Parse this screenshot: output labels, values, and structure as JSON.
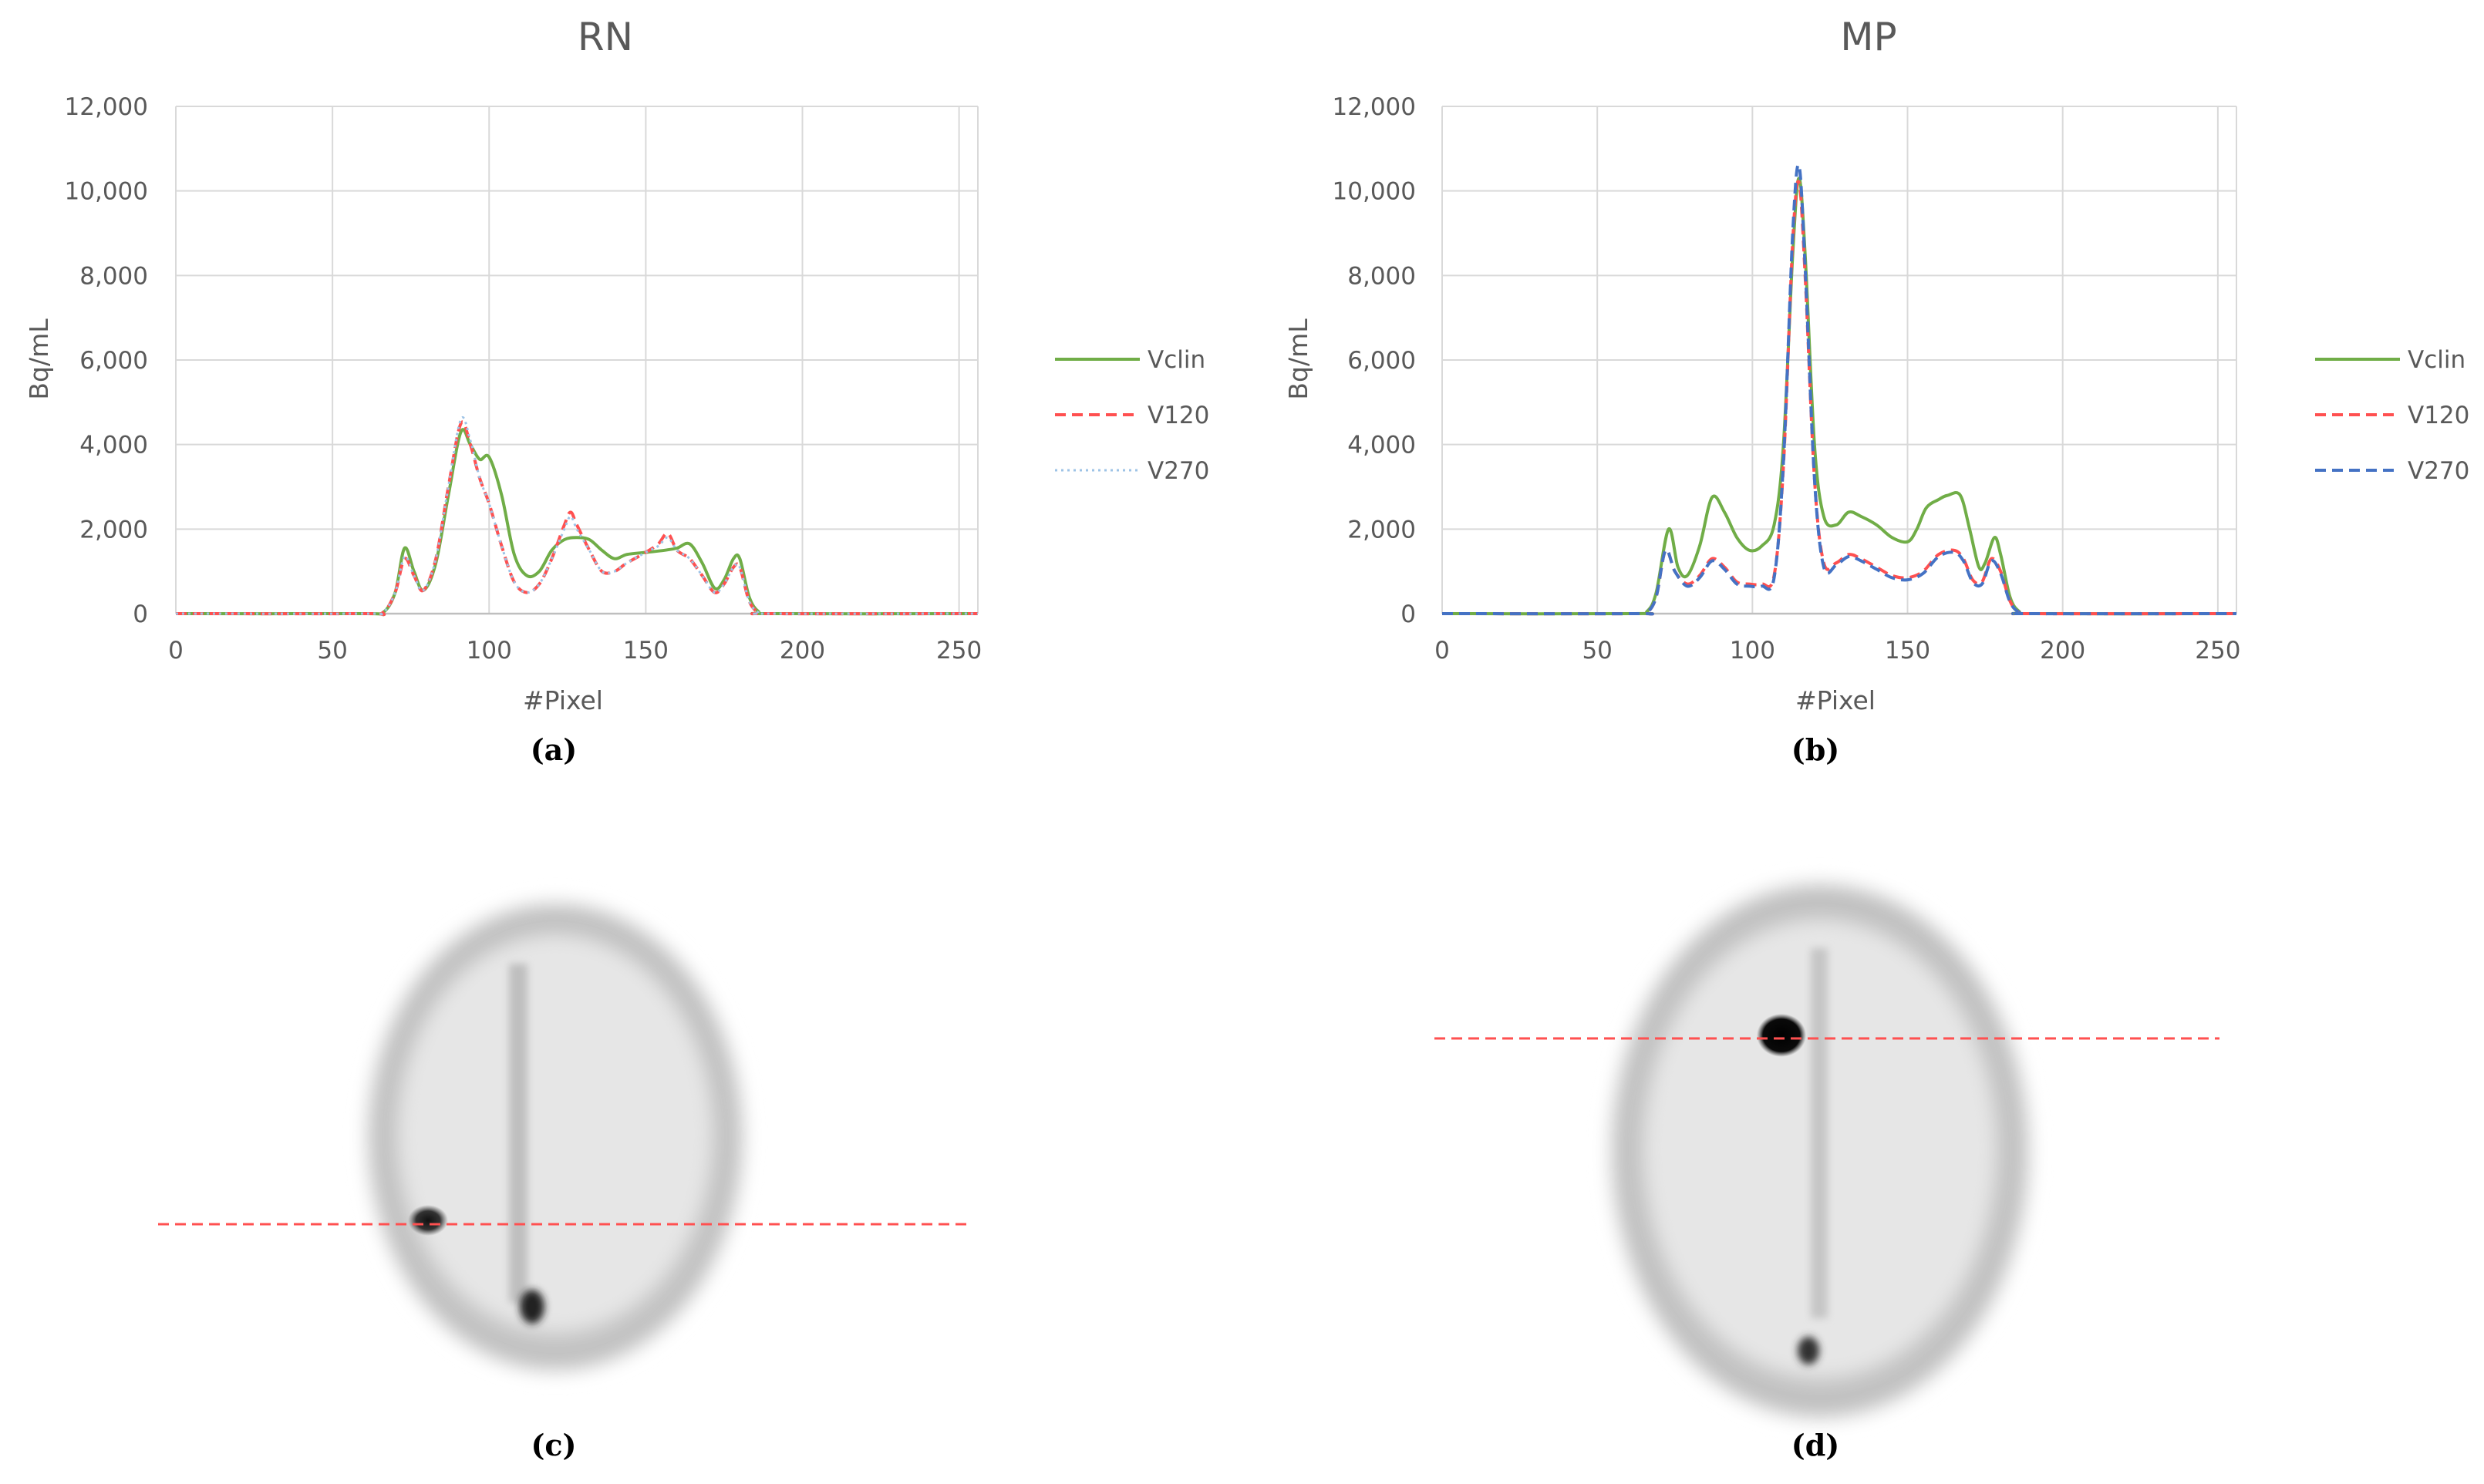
{
  "captions": {
    "a": "(a)",
    "b": "(b)",
    "c": "(c)",
    "d": "(d)"
  },
  "chart_data": [
    {
      "type": "line",
      "title": "RN",
      "xlabel": "#Pixel",
      "ylabel": "Bq/mL",
      "xlim": [
        0,
        256
      ],
      "ylim": [
        0,
        12000
      ],
      "xticks": [
        "0",
        "50",
        "100",
        "150",
        "200",
        "250"
      ],
      "yticks": [
        "0",
        "2,000",
        "4,000",
        "6,000",
        "8,000",
        "10,000",
        "12,000"
      ],
      "grid": true,
      "legend_position": "right",
      "series": [
        {
          "name": "Vclin",
          "color": "#70ad47",
          "dash": "solid",
          "points": [
            [
              0,
              0
            ],
            [
              60,
              0
            ],
            [
              66,
              20
            ],
            [
              70,
              500
            ],
            [
              73,
              1550
            ],
            [
              76,
              1000
            ],
            [
              79,
              550
            ],
            [
              83,
              1200
            ],
            [
              87,
              2800
            ],
            [
              91,
              4300
            ],
            [
              94,
              4000
            ],
            [
              97,
              3650
            ],
            [
              100,
              3700
            ],
            [
              104,
              2800
            ],
            [
              108,
              1400
            ],
            [
              112,
              900
            ],
            [
              116,
              1000
            ],
            [
              120,
              1500
            ],
            [
              124,
              1750
            ],
            [
              128,
              1800
            ],
            [
              132,
              1750
            ],
            [
              136,
              1500
            ],
            [
              140,
              1300
            ],
            [
              144,
              1400
            ],
            [
              150,
              1450
            ],
            [
              156,
              1500
            ],
            [
              160,
              1550
            ],
            [
              164,
              1650
            ],
            [
              168,
              1200
            ],
            [
              172,
              600
            ],
            [
              175,
              800
            ],
            [
              178,
              1300
            ],
            [
              180,
              1300
            ],
            [
              183,
              400
            ],
            [
              186,
              50
            ],
            [
              190,
              0
            ],
            [
              256,
              0
            ]
          ]
        },
        {
          "name": "V120",
          "color": "#ff5050",
          "dash": "dashed",
          "points": [
            [
              0,
              0
            ],
            [
              60,
              0
            ],
            [
              66,
              20
            ],
            [
              70,
              500
            ],
            [
              73,
              1300
            ],
            [
              76,
              900
            ],
            [
              79,
              550
            ],
            [
              83,
              1300
            ],
            [
              87,
              3000
            ],
            [
              91,
              4500
            ],
            [
              94,
              4000
            ],
            [
              97,
              3200
            ],
            [
              100,
              2600
            ],
            [
              104,
              1600
            ],
            [
              108,
              750
            ],
            [
              112,
              500
            ],
            [
              116,
              700
            ],
            [
              120,
              1300
            ],
            [
              124,
              2100
            ],
            [
              126,
              2400
            ],
            [
              128,
              2100
            ],
            [
              132,
              1500
            ],
            [
              136,
              1000
            ],
            [
              140,
              1000
            ],
            [
              144,
              1200
            ],
            [
              150,
              1450
            ],
            [
              154,
              1650
            ],
            [
              157,
              1900
            ],
            [
              160,
              1500
            ],
            [
              164,
              1300
            ],
            [
              168,
              900
            ],
            [
              172,
              500
            ],
            [
              175,
              700
            ],
            [
              178,
              1100
            ],
            [
              180,
              1100
            ],
            [
              183,
              300
            ],
            [
              186,
              30
            ],
            [
              190,
              0
            ],
            [
              256,
              0
            ]
          ]
        },
        {
          "name": "V270",
          "color": "#9dc3e6",
          "dash": "dotted",
          "points": [
            [
              0,
              0
            ],
            [
              60,
              0
            ],
            [
              66,
              20
            ],
            [
              70,
              500
            ],
            [
              73,
              1350
            ],
            [
              76,
              900
            ],
            [
              79,
              550
            ],
            [
              83,
              1300
            ],
            [
              87,
              3000
            ],
            [
              91,
              4600
            ],
            [
              94,
              4100
            ],
            [
              97,
              3200
            ],
            [
              100,
              2600
            ],
            [
              104,
              1600
            ],
            [
              108,
              750
            ],
            [
              112,
              500
            ],
            [
              116,
              700
            ],
            [
              120,
              1300
            ],
            [
              124,
              2000
            ],
            [
              126,
              2300
            ],
            [
              128,
              2000
            ],
            [
              132,
              1500
            ],
            [
              136,
              1000
            ],
            [
              140,
              1000
            ],
            [
              144,
              1200
            ],
            [
              150,
              1450
            ],
            [
              154,
              1600
            ],
            [
              157,
              1800
            ],
            [
              160,
              1500
            ],
            [
              164,
              1300
            ],
            [
              168,
              900
            ],
            [
              172,
              500
            ],
            [
              175,
              700
            ],
            [
              178,
              1100
            ],
            [
              180,
              1100
            ],
            [
              183,
              300
            ],
            [
              186,
              30
            ],
            [
              190,
              0
            ],
            [
              256,
              0
            ]
          ]
        }
      ]
    },
    {
      "type": "line",
      "title": "MP",
      "xlabel": "#Pixel",
      "ylabel": "Bq/mL",
      "xlim": [
        0,
        256
      ],
      "ylim": [
        0,
        12000
      ],
      "xticks": [
        "0",
        "50",
        "100",
        "150",
        "200",
        "250"
      ],
      "yticks": [
        "0",
        "2,000",
        "4,000",
        "6,000",
        "8,000",
        "10,000",
        "12,000"
      ],
      "grid": true,
      "legend_position": "right",
      "series": [
        {
          "name": "Vclin",
          "color": "#70ad47",
          "dash": "solid",
          "points": [
            [
              0,
              0
            ],
            [
              62,
              0
            ],
            [
              66,
              50
            ],
            [
              69,
              500
            ],
            [
              73,
              2000
            ],
            [
              76,
              1100
            ],
            [
              79,
              900
            ],
            [
              83,
              1600
            ],
            [
              87,
              2750
            ],
            [
              91,
              2400
            ],
            [
              95,
              1800
            ],
            [
              99,
              1500
            ],
            [
              103,
              1600
            ],
            [
              107,
              2100
            ],
            [
              110,
              4000
            ],
            [
              113,
              8500
            ],
            [
              115,
              10300
            ],
            [
              117,
              8500
            ],
            [
              120,
              4000
            ],
            [
              123,
              2300
            ],
            [
              127,
              2100
            ],
            [
              131,
              2400
            ],
            [
              135,
              2300
            ],
            [
              140,
              2100
            ],
            [
              145,
              1800
            ],
            [
              150,
              1700
            ],
            [
              153,
              2000
            ],
            [
              156,
              2500
            ],
            [
              160,
              2700
            ],
            [
              163,
              2800
            ],
            [
              167,
              2800
            ],
            [
              170,
              2000
            ],
            [
              173,
              1100
            ],
            [
              175,
              1200
            ],
            [
              178,
              1800
            ],
            [
              180,
              1400
            ],
            [
              183,
              400
            ],
            [
              186,
              50
            ],
            [
              190,
              0
            ],
            [
              256,
              0
            ]
          ]
        },
        {
          "name": "V120",
          "color": "#ff5050",
          "dash": "dashed",
          "points": [
            [
              0,
              0
            ],
            [
              62,
              0
            ],
            [
              66,
              30
            ],
            [
              69,
              400
            ],
            [
              72,
              1500
            ],
            [
              75,
              1000
            ],
            [
              79,
              700
            ],
            [
              83,
              900
            ],
            [
              87,
              1300
            ],
            [
              91,
              1100
            ],
            [
              95,
              750
            ],
            [
              99,
              700
            ],
            [
              103,
              700
            ],
            [
              107,
              900
            ],
            [
              110,
              3500
            ],
            [
              113,
              8800
            ],
            [
              115,
              10200
            ],
            [
              117,
              8000
            ],
            [
              120,
              3200
            ],
            [
              123,
              1200
            ],
            [
              127,
              1200
            ],
            [
              131,
              1400
            ],
            [
              135,
              1300
            ],
            [
              140,
              1100
            ],
            [
              145,
              900
            ],
            [
              150,
              850
            ],
            [
              155,
              1000
            ],
            [
              160,
              1400
            ],
            [
              165,
              1500
            ],
            [
              168,
              1300
            ],
            [
              171,
              800
            ],
            [
              174,
              750
            ],
            [
              177,
              1300
            ],
            [
              180,
              1000
            ],
            [
              183,
              300
            ],
            [
              186,
              30
            ],
            [
              190,
              0
            ],
            [
              256,
              0
            ]
          ]
        },
        {
          "name": "V270",
          "color": "#4472c4",
          "dash": "dashed",
          "points": [
            [
              0,
              0
            ],
            [
              62,
              0
            ],
            [
              66,
              30
            ],
            [
              69,
              400
            ],
            [
              72,
              1500
            ],
            [
              75,
              1000
            ],
            [
              79,
              650
            ],
            [
              83,
              850
            ],
            [
              87,
              1250
            ],
            [
              91,
              1050
            ],
            [
              95,
              700
            ],
            [
              99,
              650
            ],
            [
              103,
              650
            ],
            [
              107,
              850
            ],
            [
              110,
              3600
            ],
            [
              113,
              9000
            ],
            [
              115,
              10600
            ],
            [
              117,
              8200
            ],
            [
              120,
              3200
            ],
            [
              123,
              1100
            ],
            [
              127,
              1150
            ],
            [
              131,
              1350
            ],
            [
              135,
              1250
            ],
            [
              140,
              1050
            ],
            [
              145,
              850
            ],
            [
              150,
              800
            ],
            [
              155,
              950
            ],
            [
              160,
              1350
            ],
            [
              165,
              1450
            ],
            [
              168,
              1250
            ],
            [
              171,
              750
            ],
            [
              174,
              700
            ],
            [
              177,
              1250
            ],
            [
              180,
              950
            ],
            [
              183,
              280
            ],
            [
              186,
              30
            ],
            [
              190,
              0
            ],
            [
              256,
              0
            ]
          ]
        }
      ]
    }
  ]
}
